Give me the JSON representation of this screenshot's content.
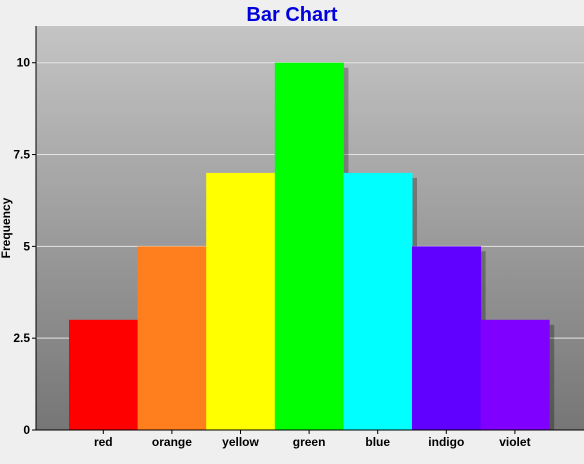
{
  "chart_data": {
    "type": "bar",
    "title": "Bar Chart",
    "xlabel": "",
    "ylabel": "Frequency",
    "categories": [
      "red",
      "orange",
      "yellow",
      "green",
      "blue",
      "indigo",
      "violet"
    ],
    "values": [
      3,
      5,
      7,
      10,
      7,
      5,
      3
    ],
    "colors": [
      "#ff0000",
      "#ff7f1f",
      "#ffff00",
      "#00ff00",
      "#00ffff",
      "#6000ff",
      "#8000ff"
    ],
    "ylim": [
      0,
      11
    ],
    "yticks": [
      "0",
      "2.5",
      "5",
      "7.5",
      "10"
    ],
    "grid": true,
    "title_color": "#0000dd",
    "legend": "none"
  }
}
